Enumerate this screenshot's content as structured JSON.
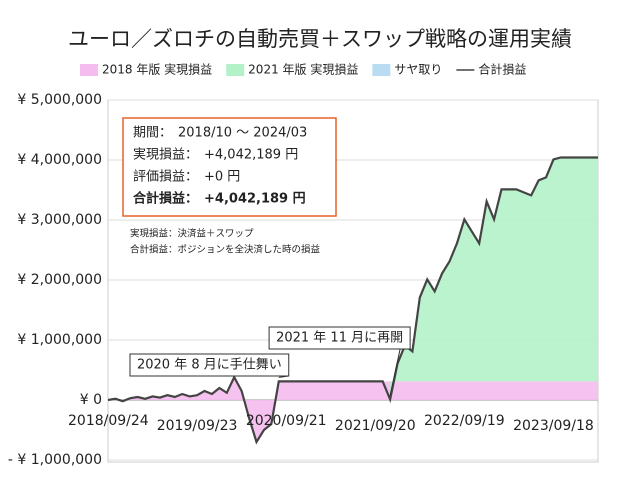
{
  "chart_data": {
    "type": "stacked-area-line",
    "title": "ユーロ／ズロチの自動売買＋スワップ戦略の運用実績",
    "categories": [
      "2018/09/24",
      null,
      null,
      null,
      null,
      null,
      null,
      null,
      null,
      null,
      null,
      null,
      "2019/09/23",
      null,
      null,
      null,
      null,
      null,
      null,
      null,
      null,
      null,
      null,
      null,
      "2020/09/21",
      null,
      null,
      null,
      null,
      null,
      null,
      null,
      null,
      null,
      null,
      null,
      "2021/09/20",
      null,
      null,
      null,
      null,
      null,
      null,
      null,
      null,
      null,
      null,
      null,
      "2022/09/19",
      null,
      null,
      null,
      null,
      null,
      null,
      null,
      null,
      null,
      null,
      null,
      "2023/09/18",
      null,
      null,
      null,
      null,
      null,
      null
    ],
    "series": [
      {
        "name": "2018 年版 実現損益",
        "color": "#f5bdef",
        "kind": "area",
        "values": [
          0,
          20000,
          -20000,
          30000,
          50000,
          20000,
          60000,
          40000,
          80000,
          50000,
          100000,
          60000,
          80000,
          150000,
          100000,
          200000,
          120000,
          380000,
          150000,
          -300000,
          -700000,
          -500000,
          -400000,
          310000,
          310000,
          310000,
          310000,
          310000,
          310000,
          310000,
          310000,
          310000,
          310000,
          310000,
          310000,
          310000,
          310000,
          310000,
          310000,
          310000,
          310000,
          310000,
          310000,
          310000,
          310000,
          310000,
          310000,
          310000,
          310000,
          310000,
          310000,
          310000,
          310000,
          310000,
          310000,
          310000,
          310000,
          310000,
          310000,
          310000,
          310000,
          310000,
          310000,
          310000,
          310000,
          310000,
          310000
        ]
      },
      {
        "name": "2021 年版 実現損益",
        "color": "#b3f2c8",
        "kind": "area",
        "values": [
          null,
          null,
          null,
          null,
          null,
          null,
          null,
          null,
          null,
          null,
          null,
          null,
          null,
          null,
          null,
          null,
          null,
          null,
          null,
          null,
          null,
          null,
          null,
          null,
          null,
          null,
          null,
          null,
          null,
          null,
          null,
          null,
          null,
          null,
          null,
          null,
          null,
          null,
          -300000,
          300000,
          600000,
          500000,
          1400000,
          1700000,
          1500000,
          1800000,
          2000000,
          2300000,
          2700000,
          2500000,
          2300000,
          3000000,
          2700000,
          3200000,
          3200000,
          3200000,
          3150000,
          3100000,
          3350000,
          3400000,
          3700000,
          3732189,
          3732189,
          3732189,
          3732189,
          3732189,
          3732189
        ]
      },
      {
        "name": "サヤ取り",
        "color": "#b9dcf3",
        "kind": "area",
        "values": [
          0,
          0,
          0,
          0,
          0,
          0,
          0,
          0,
          0,
          0,
          0,
          0,
          0,
          0,
          0,
          0,
          0,
          0,
          0,
          0,
          0,
          0,
          0,
          0,
          0,
          0,
          0,
          0,
          0,
          0,
          0,
          0,
          0,
          0,
          0,
          0,
          0,
          0,
          0,
          0,
          0,
          0,
          0,
          0,
          0,
          0,
          0,
          0,
          0,
          0,
          0,
          0,
          0,
          0,
          0,
          0,
          0,
          0,
          0,
          0,
          0,
          0,
          0,
          0,
          0,
          0,
          0
        ]
      },
      {
        "name": "合計損益",
        "color": "#444444",
        "kind": "line",
        "values": [
          0,
          20000,
          -20000,
          30000,
          50000,
          20000,
          60000,
          40000,
          80000,
          50000,
          100000,
          60000,
          80000,
          150000,
          100000,
          200000,
          120000,
          380000,
          150000,
          -300000,
          -700000,
          -500000,
          -400000,
          310000,
          310000,
          310000,
          310000,
          310000,
          310000,
          310000,
          310000,
          310000,
          310000,
          310000,
          310000,
          310000,
          310000,
          310000,
          10000,
          610000,
          910000,
          810000,
          1710000,
          2010000,
          1810000,
          2110000,
          2310000,
          2610000,
          3010000,
          2810000,
          2610000,
          3310000,
          3010000,
          3510000,
          3510000,
          3510000,
          3460000,
          3410000,
          3660000,
          3710000,
          4010000,
          4042189,
          4042189,
          4042189,
          4042189,
          4042189,
          4042189
        ]
      }
    ],
    "ylim": [
      -1000000,
      5000000
    ],
    "yticks": [
      {
        "value": -1000000,
        "label": "- ¥ 1,000,000"
      },
      {
        "value": 0,
        "label": "¥ 0"
      },
      {
        "value": 1000000,
        "label": "¥ 1,000,000"
      },
      {
        "value": 2000000,
        "label": "¥ 2,000,000"
      },
      {
        "value": 3000000,
        "label": "¥ 3,000,000"
      },
      {
        "value": 4000000,
        "label": "¥ 4,000,000"
      },
      {
        "value": 5000000,
        "label": "¥ 5,000,000"
      }
    ],
    "grid": true,
    "legend": "top",
    "info_box": {
      "rows": [
        {
          "label": "期間：",
          "value": "2018/10 〜 2024/03"
        },
        {
          "label": "実現損益：",
          "value": "+4,042,189 円"
        },
        {
          "label": "評価損益：",
          "value": "+0 円"
        },
        {
          "label": "合計損益：",
          "value": "+4,042,189 円"
        }
      ],
      "notes": [
        "実現損益：決済益＋スワップ",
        "合計損益：ポジションを全決済した時の損益"
      ]
    },
    "annotations": [
      {
        "text": "2021 年 11 月に再開",
        "index": 38
      },
      {
        "text": "2020 年 8 月に手仕舞い",
        "index": 23
      }
    ]
  }
}
